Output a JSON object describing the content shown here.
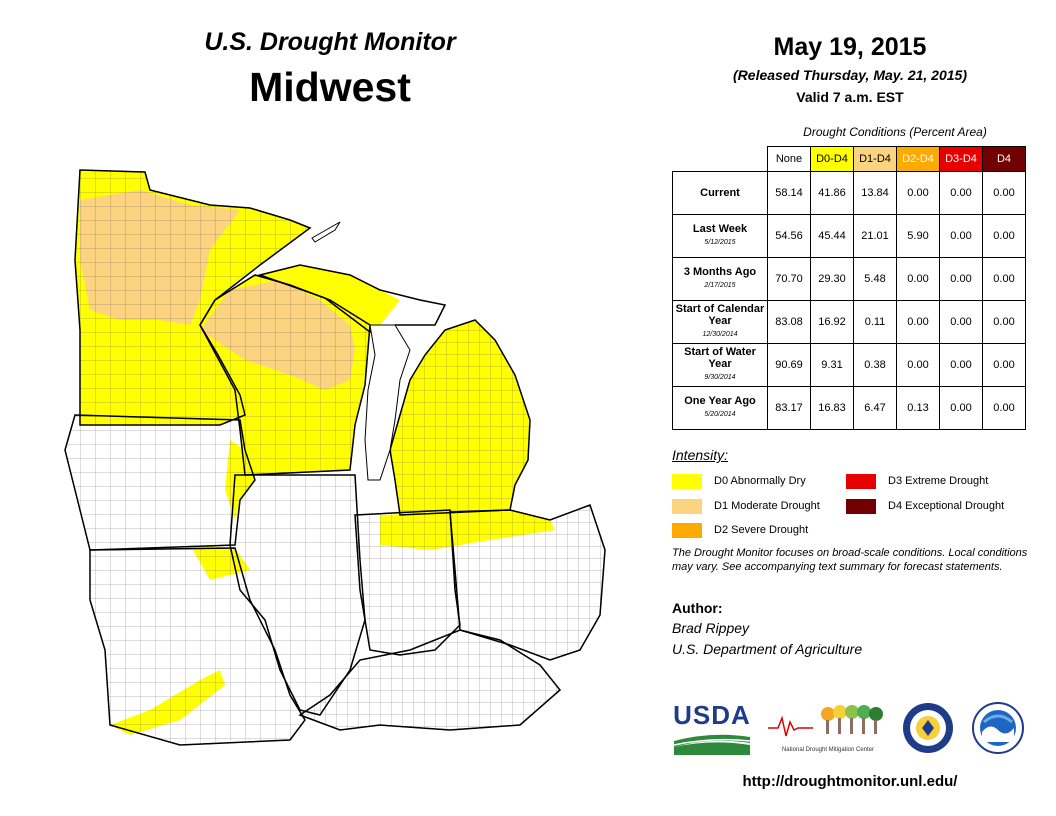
{
  "header": {
    "title": "U.S. Drought Monitor",
    "region": "Midwest",
    "date": "May 19, 2015",
    "released": "(Released Thursday, May. 21, 2015)",
    "valid": "Valid  7 a.m. EST"
  },
  "table": {
    "caption": "Drought Conditions (Percent Area)",
    "columns": [
      {
        "label": "None",
        "bg": "#ffffff",
        "fg": "#000000"
      },
      {
        "label": "D0-D4",
        "bg": "#ffff00",
        "fg": "#000000"
      },
      {
        "label": "D1-D4",
        "bg": "#fcd37f",
        "fg": "#000000"
      },
      {
        "label": "D2-D4",
        "bg": "#ffaa00",
        "fg": "#ffffff"
      },
      {
        "label": "D3-D4",
        "bg": "#e60000",
        "fg": "#ffffff"
      },
      {
        "label": "D4",
        "bg": "#730000",
        "fg": "#ffffff"
      }
    ],
    "rows": [
      {
        "label": "Current",
        "sub": "",
        "values": [
          "58.14",
          "41.86",
          "13.84",
          "0.00",
          "0.00",
          "0.00"
        ]
      },
      {
        "label": "Last Week",
        "sub": "5/12/2015",
        "values": [
          "54.56",
          "45.44",
          "21.01",
          "5.90",
          "0.00",
          "0.00"
        ]
      },
      {
        "label": "3 Months Ago",
        "sub": "2/17/2015",
        "values": [
          "70.70",
          "29.30",
          "5.48",
          "0.00",
          "0.00",
          "0.00"
        ]
      },
      {
        "label": "Start of Calendar Year",
        "sub": "12/30/2014",
        "values": [
          "83.08",
          "16.92",
          "0.11",
          "0.00",
          "0.00",
          "0.00"
        ]
      },
      {
        "label": "Start of Water Year",
        "sub": "9/30/2014",
        "values": [
          "90.69",
          "9.31",
          "0.38",
          "0.00",
          "0.00",
          "0.00"
        ]
      },
      {
        "label": "One Year Ago",
        "sub": "5/20/2014",
        "values": [
          "83.17",
          "16.83",
          "6.47",
          "0.13",
          "0.00",
          "0.00"
        ]
      }
    ]
  },
  "legend": {
    "title": "Intensity:",
    "items": [
      {
        "label": "D0 Abnormally Dry",
        "color": "#ffff00"
      },
      {
        "label": "D1 Moderate Drought",
        "color": "#fcd37f"
      },
      {
        "label": "D2 Severe Drought",
        "color": "#ffaa00"
      },
      {
        "label": "D3 Extreme Drought",
        "color": "#e60000"
      },
      {
        "label": "D4 Exceptional Drought",
        "color": "#730000"
      }
    ]
  },
  "note": "The Drought Monitor focuses on broad-scale conditions. Local conditions may vary. See accompanying text summary for forecast statements.",
  "author": {
    "title": "Author:",
    "name": "Brad Rippey",
    "org": "U.S. Department of Agriculture"
  },
  "logos": {
    "usda": "USDA",
    "ndmc": "National Drought Mitigation Center"
  },
  "url": "http://droughtmonitor.unl.edu/"
}
